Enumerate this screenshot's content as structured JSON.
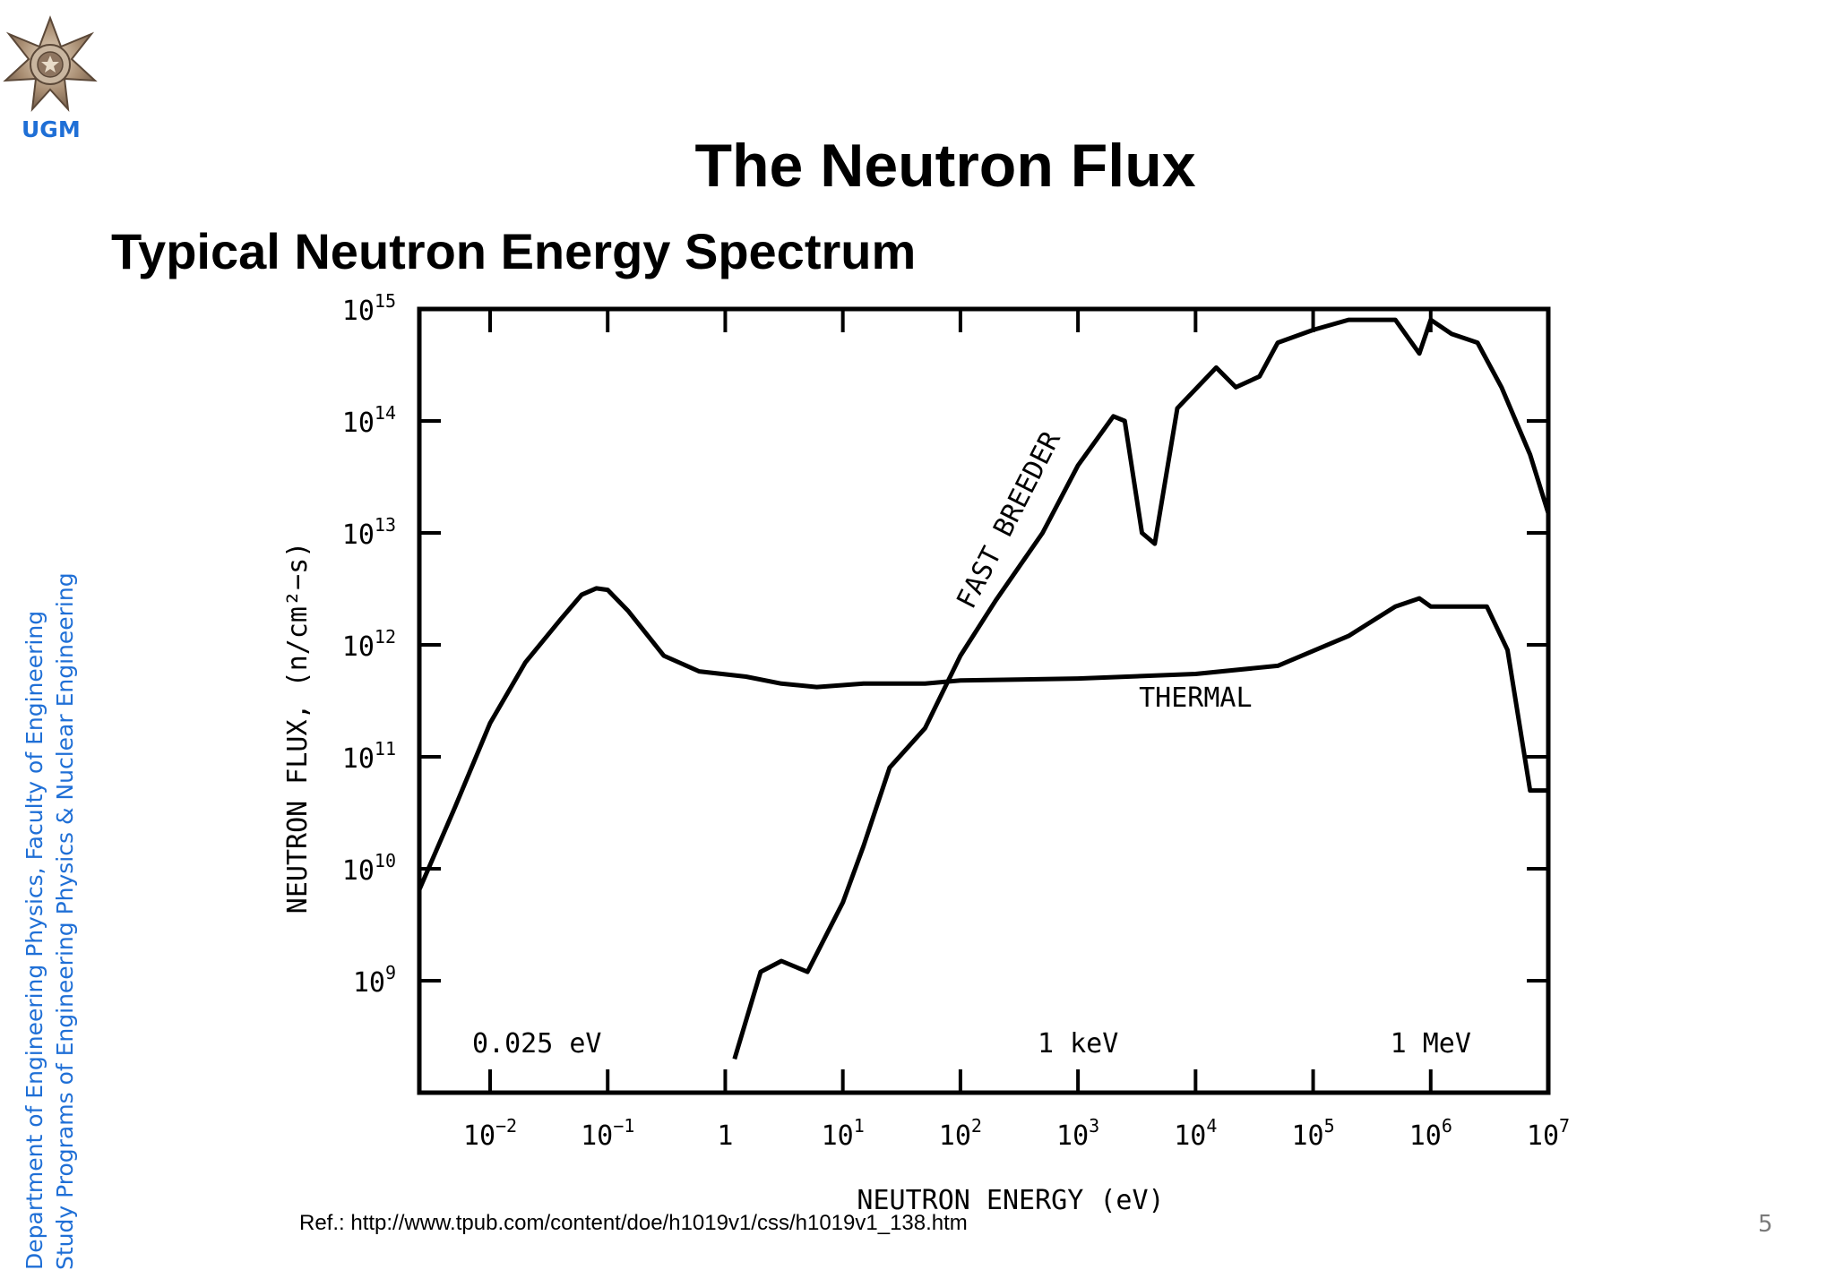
{
  "branding": {
    "logo_icon": "ugm-seal-icon",
    "logo_text": "UGM",
    "accent_color": "#1f6fd6",
    "sidebar_lines": [
      "Department of Engineering Physics, Faculty of Engineering",
      "Study Programs of Engineering Physics & Nuclear Engineering"
    ]
  },
  "slide": {
    "title": "The Neutron Flux",
    "subtitle": "Typical Neutron Energy Spectrum",
    "reference": "Ref.: http://www.tpub.com/content/doe/h1019v1/css/h1019v1_138.htm",
    "page_number": "5"
  },
  "chart_data": {
    "type": "line",
    "title": "",
    "xlabel": "NEUTRON ENERGY (eV)",
    "ylabel": "NEUTRON FLUX, (n/cm²−s)",
    "x_scale": "log",
    "y_scale": "log",
    "xlim": [
      0.0025,
      10000000
    ],
    "ylim": [
      100000000,
      1000000000000000
    ],
    "grid": false,
    "x_ticks": [
      {
        "value": 0.01,
        "base": "10",
        "exp": "−2"
      },
      {
        "value": 0.1,
        "base": "10",
        "exp": "−1"
      },
      {
        "value": 1,
        "base": "1",
        "exp": ""
      },
      {
        "value": 10,
        "base": "10",
        "exp": "1"
      },
      {
        "value": 100,
        "base": "10",
        "exp": "2"
      },
      {
        "value": 1000,
        "base": "10",
        "exp": "3"
      },
      {
        "value": 10000,
        "base": "10",
        "exp": "4"
      },
      {
        "value": 100000,
        "base": "10",
        "exp": "5"
      },
      {
        "value": 1000000,
        "base": "10",
        "exp": "6"
      },
      {
        "value": 10000000,
        "base": "10",
        "exp": "7"
      }
    ],
    "y_ticks": [
      {
        "value": 1000000000,
        "base": "10",
        "exp": "9"
      },
      {
        "value": 10000000000,
        "base": "10",
        "exp": "10"
      },
      {
        "value": 100000000000,
        "base": "10",
        "exp": "11"
      },
      {
        "value": 1000000000000,
        "base": "10",
        "exp": "12"
      },
      {
        "value": 10000000000000,
        "base": "10",
        "exp": "13"
      },
      {
        "value": 100000000000000,
        "base": "10",
        "exp": "14"
      },
      {
        "value": 1000000000000000,
        "base": "10",
        "exp": "15"
      }
    ],
    "series": [
      {
        "name": "THERMAL",
        "points": [
          [
            0.0025,
            6500000000.0
          ],
          [
            0.005,
            35000000000.0
          ],
          [
            0.01,
            200000000000.0
          ],
          [
            0.02,
            700000000000.0
          ],
          [
            0.04,
            1700000000000.0
          ],
          [
            0.06,
            2800000000000.0
          ],
          [
            0.08,
            3200000000000.0
          ],
          [
            0.1,
            3100000000000.0
          ],
          [
            0.15,
            2000000000000.0
          ],
          [
            0.3,
            800000000000.0
          ],
          [
            0.6,
            580000000000.0
          ],
          [
            1.5,
            520000000000.0
          ],
          [
            3,
            450000000000.0
          ],
          [
            6,
            420000000000.0
          ],
          [
            15,
            450000000000.0
          ],
          [
            50,
            450000000000.0
          ],
          [
            100,
            480000000000.0
          ],
          [
            1000,
            500000000000.0
          ],
          [
            10000,
            550000000000.0
          ],
          [
            50000,
            650000000000.0
          ],
          [
            200000,
            1200000000000.0
          ],
          [
            500000,
            2200000000000.0
          ],
          [
            800000,
            2600000000000.0
          ],
          [
            1000000,
            2200000000000.0
          ],
          [
            3000000,
            2200000000000.0
          ],
          [
            4500000,
            900000000000.0
          ],
          [
            7000000,
            50000000000.0
          ],
          [
            10000000,
            50000000000.0
          ]
        ]
      },
      {
        "name": "FAST BREEDER",
        "points": [
          [
            1.2,
            200000000.0
          ],
          [
            2,
            1200000000.0
          ],
          [
            3,
            1500000000.0
          ],
          [
            5,
            1200000000.0
          ],
          [
            10,
            5000000000.0
          ],
          [
            15,
            16000000000.0
          ],
          [
            25,
            80000000000.0
          ],
          [
            50,
            180000000000.0
          ],
          [
            100,
            800000000000.0
          ],
          [
            200,
            2500000000000.0
          ],
          [
            500,
            10000000000000.0
          ],
          [
            1000,
            40000000000000.0
          ],
          [
            2000,
            110000000000000.0
          ],
          [
            2500,
            100000000000000.0
          ],
          [
            3500,
            10000000000000.0
          ],
          [
            4500,
            8000000000000.0
          ],
          [
            7000,
            130000000000000.0
          ],
          [
            15000,
            300000000000000.0
          ],
          [
            22000,
            200000000000000.0
          ],
          [
            35000,
            250000000000000.0
          ],
          [
            50000,
            500000000000000.0
          ],
          [
            100000,
            650000000000000.0
          ],
          [
            200000,
            800000000000000.0
          ],
          [
            500000,
            800000000000000.0
          ],
          [
            800000,
            400000000000000.0
          ],
          [
            1000000,
            800000000000000.0
          ],
          [
            1500000,
            600000000000000.0
          ],
          [
            2500000,
            500000000000000.0
          ],
          [
            4000000,
            200000000000000.0
          ],
          [
            7000000,
            50000000000000.0
          ],
          [
            10000000,
            15000000000000.0
          ]
        ]
      }
    ],
    "annotations": [
      {
        "text": "0.025  eV",
        "x": 0.025,
        "y": 230000000.0
      },
      {
        "text": "1  keV",
        "x": 1000,
        "y": 230000000.0
      },
      {
        "text": "1  MeV",
        "x": 1000000,
        "y": 230000000.0
      },
      {
        "text": "THERMAL",
        "x": 10000,
        "y": 280000000000.0
      },
      {
        "text": "FAST BREEDER",
        "x": 300,
        "y": 12000000000000.0,
        "rotate": -63
      }
    ]
  }
}
